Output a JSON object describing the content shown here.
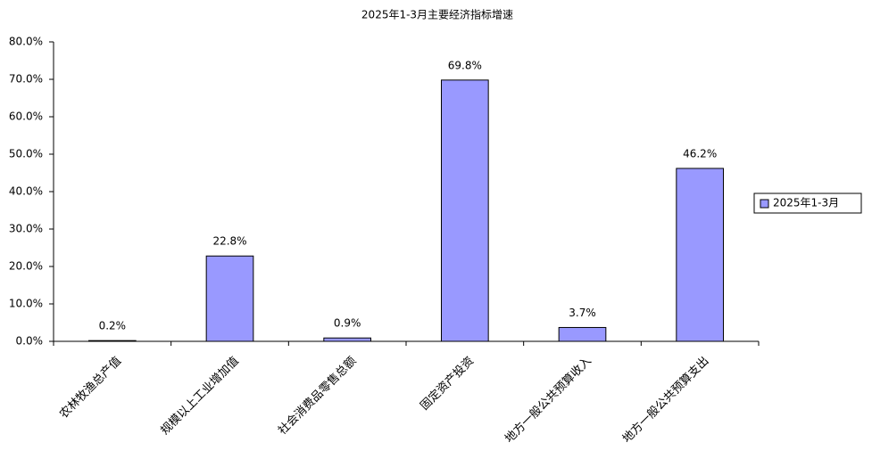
{
  "chart_data": {
    "type": "bar",
    "title": "2025年1-3月主要经济指标增速",
    "categories": [
      "农林牧渔总产值",
      "规模以上工业增加值",
      "社会消费品零售总额",
      "固定资产投资",
      "地方一般公共预算收入",
      "地方一般公共预算支出"
    ],
    "series": [
      {
        "name": "2025年1-3月",
        "color": "#9999ff",
        "values": [
          0.2,
          22.8,
          0.9,
          69.8,
          3.7,
          46.2
        ],
        "value_labels": [
          "0.2%",
          "22.8%",
          "0.9%",
          "69.8%",
          "3.7%",
          "46.2%"
        ]
      }
    ],
    "ylim": [
      0,
      80
    ],
    "yticks": [
      {
        "value": 0,
        "label": "0.0%"
      },
      {
        "value": 10,
        "label": "10.0%"
      },
      {
        "value": 20,
        "label": "20.0%"
      },
      {
        "value": 30,
        "label": "30.0%"
      },
      {
        "value": 40,
        "label": "40.0%"
      },
      {
        "value": 50,
        "label": "50.0%"
      },
      {
        "value": 60,
        "label": "60.0%"
      },
      {
        "value": 70,
        "label": "70.0%"
      },
      {
        "value": 80,
        "label": "80.0%"
      }
    ],
    "grid": false,
    "legend": "right"
  }
}
